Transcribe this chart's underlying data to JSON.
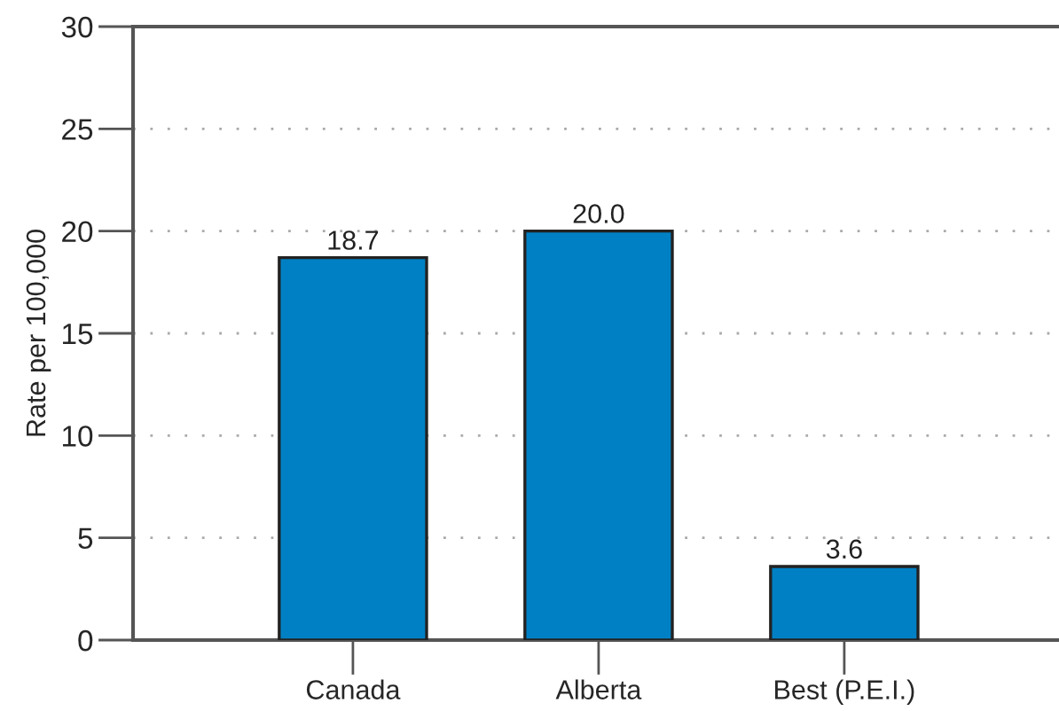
{
  "chart_data": {
    "type": "bar",
    "ylabel": "Rate per 100,000",
    "categories": [
      "Canada",
      "Alberta",
      "Best (P.E.I.)"
    ],
    "values": [
      18.7,
      20.0,
      3.6
    ],
    "color": "#0080c4",
    "value_labels": [
      "18.7",
      "20.0",
      "3.6"
    ],
    "ylim": [
      0,
      30
    ],
    "yticks": [
      0,
      5,
      10,
      15,
      20,
      25,
      30
    ],
    "grid": "y",
    "legend": false
  }
}
